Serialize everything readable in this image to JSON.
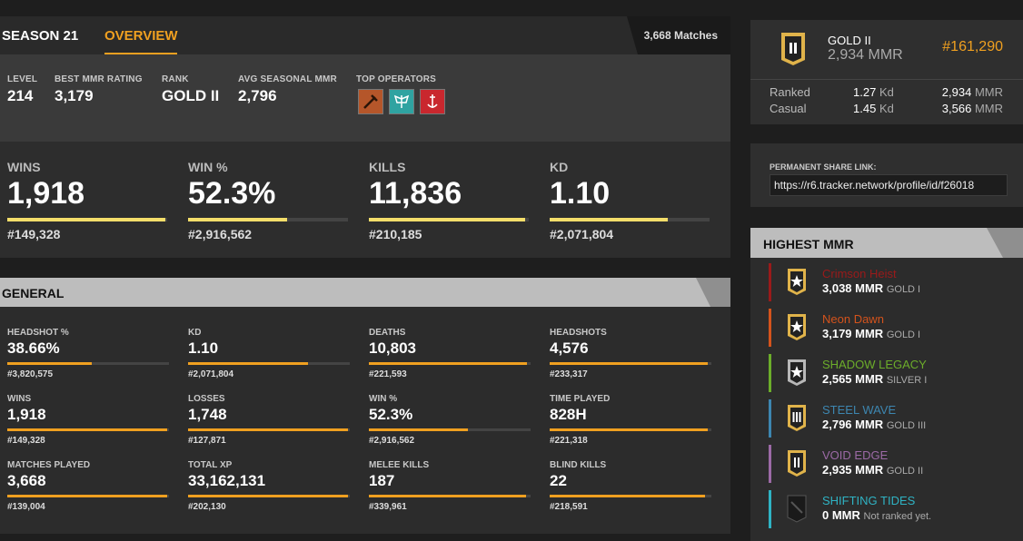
{
  "season": {
    "title": "SEASON 21",
    "tab": "OVERVIEW",
    "matches": "3,668 Matches",
    "summary": [
      {
        "label": "LEVEL",
        "value": "214"
      },
      {
        "label": "BEST MMR RATING",
        "value": "3,179"
      },
      {
        "label": "RANK",
        "value": "GOLD II"
      },
      {
        "label": "AVG SEASONAL MMR",
        "value": "2,796"
      }
    ],
    "top_operators_label": "TOP OPERATORS",
    "operators": [
      {
        "icon": "operator-hammer-icon",
        "color": "#b5562a"
      },
      {
        "icon": "operator-wings-icon",
        "color": "#2fa3a1"
      },
      {
        "icon": "operator-anchor-icon",
        "color": "#c9272e"
      }
    ],
    "big_stats": [
      {
        "label": "WINS",
        "value": "1,918",
        "rank": "#149,328",
        "fill": 0.99
      },
      {
        "label": "WIN %",
        "value": "52.3%",
        "rank": "#2,916,562",
        "fill": 0.62
      },
      {
        "label": "KILLS",
        "value": "11,836",
        "rank": "#210,185",
        "fill": 0.98
      },
      {
        "label": "KD",
        "value": "1.10",
        "rank": "#2,071,804",
        "fill": 0.74
      }
    ]
  },
  "general": {
    "title": "GENERAL",
    "stats": [
      {
        "label": "HEADSHOT %",
        "value": "38.66%",
        "rank": "#3,820,575",
        "fill": 0.52
      },
      {
        "label": "KD",
        "value": "1.10",
        "rank": "#2,071,804",
        "fill": 0.74
      },
      {
        "label": "DEATHS",
        "value": "10,803",
        "rank": "#221,593",
        "fill": 0.98
      },
      {
        "label": "HEADSHOTS",
        "value": "4,576",
        "rank": "#233,317",
        "fill": 0.98
      },
      {
        "label": "WINS",
        "value": "1,918",
        "rank": "#149,328",
        "fill": 0.99
      },
      {
        "label": "LOSSES",
        "value": "1,748",
        "rank": "#127,871",
        "fill": 0.99
      },
      {
        "label": "WIN %",
        "value": "52.3%",
        "rank": "#2,916,562",
        "fill": 0.61
      },
      {
        "label": "TIME PLAYED",
        "value": "828H",
        "rank": "#221,318",
        "fill": 0.98
      },
      {
        "label": "MATCHES PLAYED",
        "value": "3,668",
        "rank": "#139,004",
        "fill": 0.99
      },
      {
        "label": "TOTAL XP",
        "value": "33,162,131",
        "rank": "#202,130",
        "fill": 0.99
      },
      {
        "label": "MELEE KILLS",
        "value": "187",
        "rank": "#339,961",
        "fill": 0.97
      },
      {
        "label": "BLIND KILLS",
        "value": "22",
        "rank": "#218,591",
        "fill": 0.96
      }
    ]
  },
  "rank_card": {
    "rank": "GOLD II",
    "mmr": "2,934 MMR",
    "position": "#161,290",
    "rows": [
      {
        "name": "Ranked",
        "kd": "1.27",
        "kd_unit": "Kd",
        "mmr": "2,934",
        "mmr_unit": "MMR"
      },
      {
        "name": "Casual",
        "kd": "1.45",
        "kd_unit": "Kd",
        "mmr": "3,566",
        "mmr_unit": "MMR"
      }
    ]
  },
  "share": {
    "label": "PERMANENT SHARE LINK:",
    "url": "https://r6.tracker.network/profile/id/f26018"
  },
  "highest_mmr": {
    "title": "HIGHEST MMR",
    "items": [
      {
        "season": "Crimson Heist",
        "mmr": "3,038 MMR",
        "rank": "GOLD I",
        "color": "#9a1a1a",
        "icon": "gold-star-icon"
      },
      {
        "season": "Neon Dawn",
        "mmr": "3,179 MMR",
        "rank": "GOLD I",
        "color": "#d4531c",
        "icon": "gold-star-icon"
      },
      {
        "season": "SHADOW LEGACY",
        "mmr": "2,565 MMR",
        "rank": "SILVER I",
        "color": "#6cad2a",
        "icon": "silver-star-icon"
      },
      {
        "season": "STEEL WAVE",
        "mmr": "2,796 MMR",
        "rank": "GOLD III",
        "color": "#3d86b0",
        "icon": "gold-iii-icon"
      },
      {
        "season": "VOID EDGE",
        "mmr": "2,935 MMR",
        "rank": "GOLD II",
        "color": "#9c6aa6",
        "icon": "gold-ii-icon"
      },
      {
        "season": "SHIFTING TIDES",
        "mmr": "0 MMR",
        "rank": "Not ranked yet.",
        "color": "#2fb3c4",
        "icon": "unranked-icon"
      }
    ]
  }
}
